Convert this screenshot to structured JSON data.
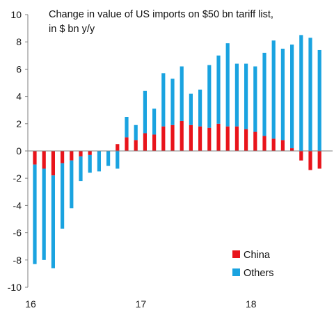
{
  "chart_data": {
    "type": "bar",
    "stacked": true,
    "title_lines": [
      "Change in value of US imports on $50 bn tariff list,",
      "in $ bn y/y"
    ],
    "ylim": [
      -10,
      10
    ],
    "y_ticks": [
      10,
      8,
      6,
      4,
      2,
      0,
      -2,
      -4,
      -6,
      -8,
      -10
    ],
    "x_tick_labels": [
      {
        "label": "16",
        "index": 0
      },
      {
        "label": "17",
        "index": 12
      },
      {
        "label": "18",
        "index": 24
      }
    ],
    "legend_position": "bottom-right",
    "series": [
      {
        "name": "China",
        "color": "#e8141b",
        "values": [
          -1.0,
          -1.3,
          -1.8,
          -0.9,
          -0.7,
          -0.4,
          -0.3,
          0.0,
          0.0,
          0.5,
          1.0,
          0.8,
          1.3,
          1.2,
          1.8,
          1.9,
          2.2,
          1.9,
          1.8,
          1.7,
          2.0,
          1.8,
          1.8,
          1.6,
          1.4,
          1.1,
          0.9,
          0.8,
          0.2,
          -0.7,
          -1.4,
          -1.3
        ]
      },
      {
        "name": "Others",
        "color": "#1aa3e0",
        "values": [
          -7.3,
          -6.7,
          -6.8,
          -4.8,
          -3.5,
          -1.8,
          -1.3,
          -1.5,
          -1.1,
          -1.3,
          1.5,
          1.1,
          3.1,
          1.9,
          3.9,
          3.4,
          4.0,
          2.3,
          2.7,
          4.6,
          5.0,
          6.1,
          4.6,
          4.8,
          4.8,
          6.1,
          7.2,
          6.7,
          7.6,
          8.5,
          8.3,
          7.4
        ]
      }
    ]
  }
}
